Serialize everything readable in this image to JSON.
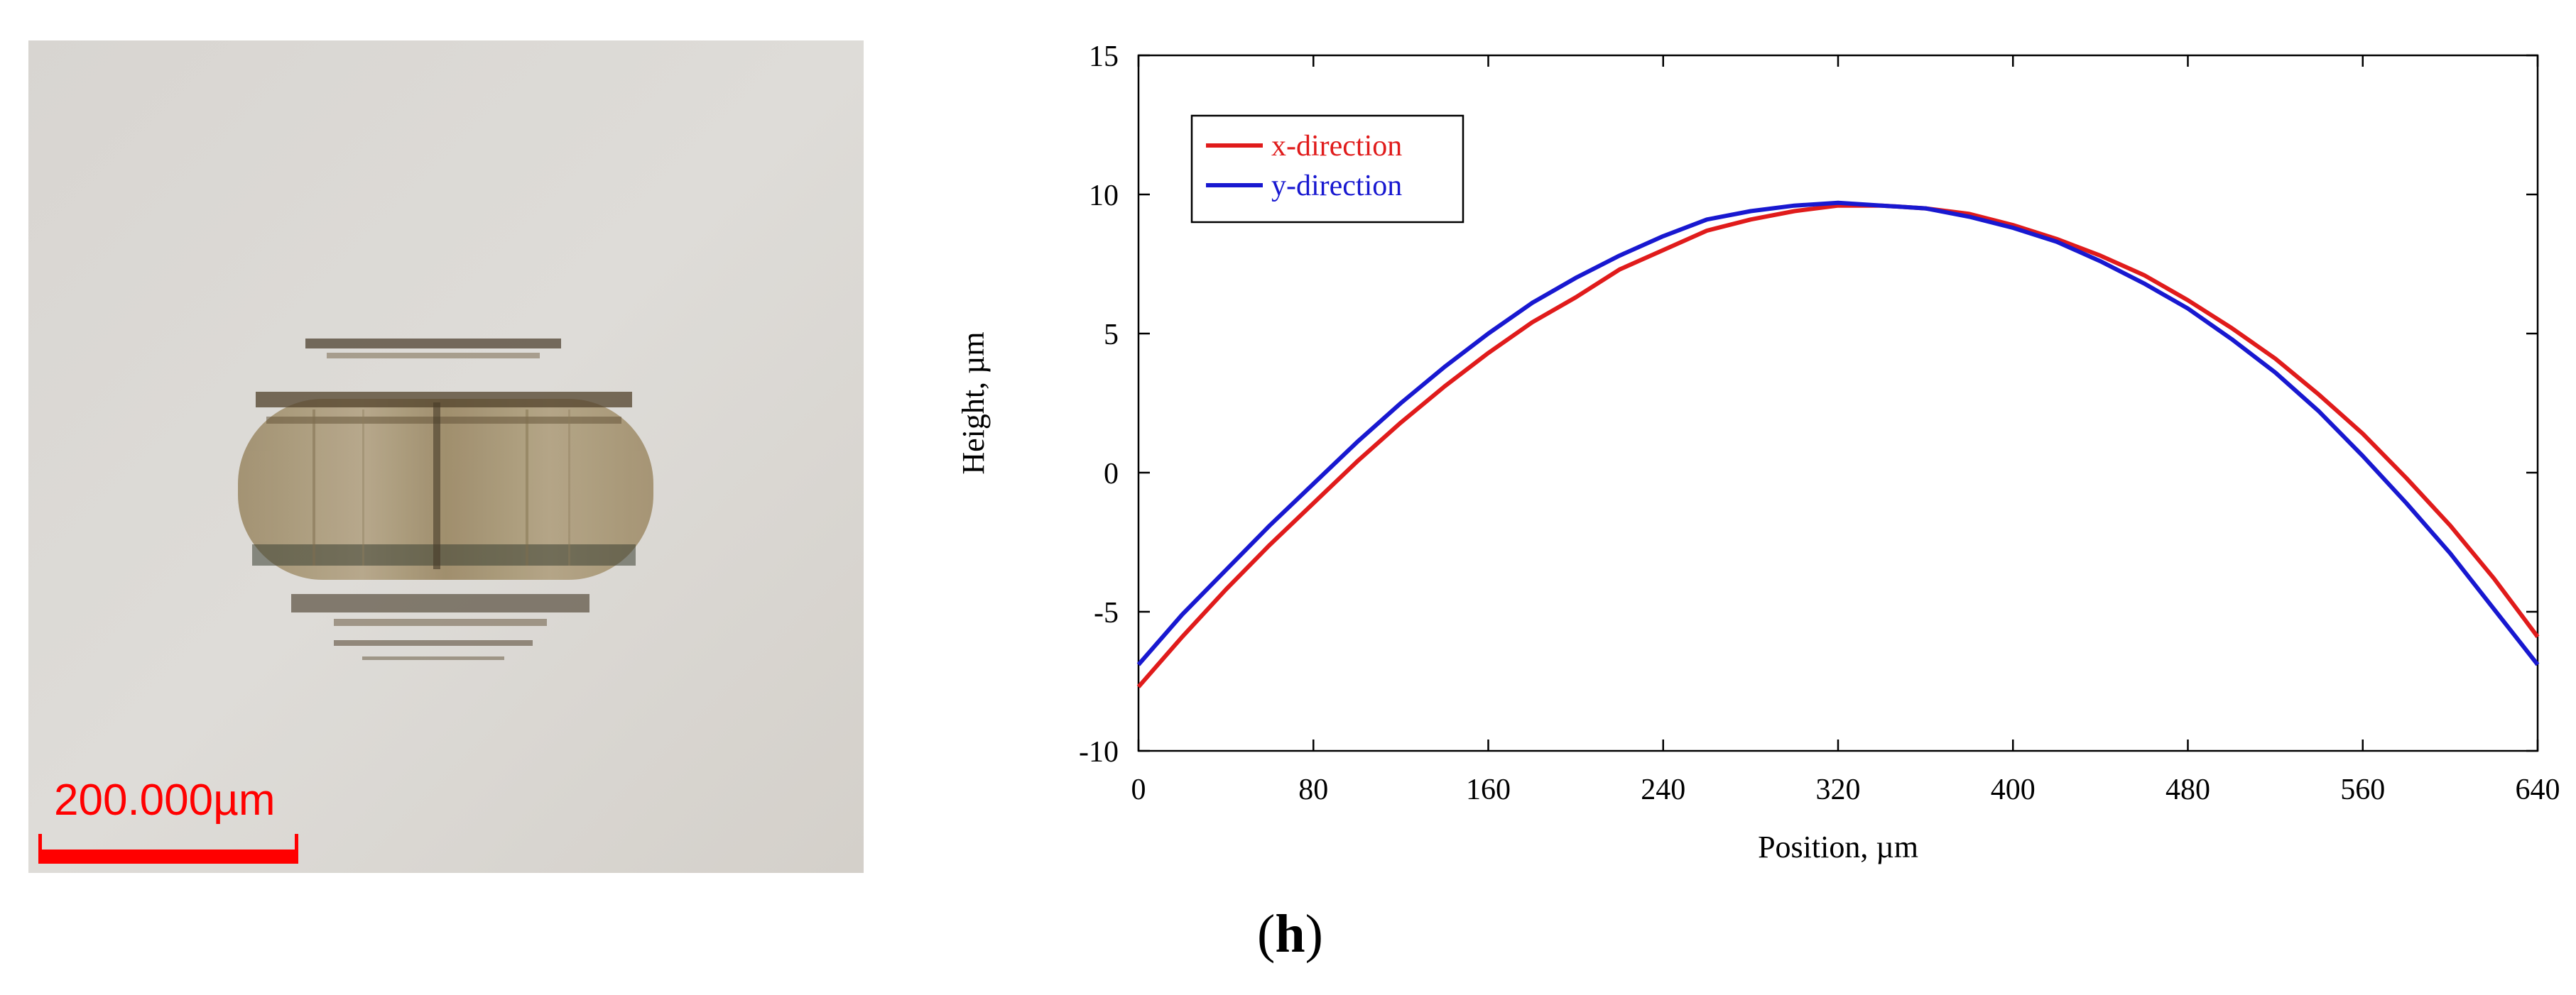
{
  "micrograph": {
    "scale_bar_label": "200.000µm",
    "scale_color": "#ff0000"
  },
  "chart_data": {
    "type": "line",
    "title": "",
    "xlabel": "Position, µm",
    "ylabel": "Height, µm",
    "xlim": [
      0,
      640
    ],
    "ylim": [
      -10,
      15
    ],
    "xticks": [
      0,
      80,
      160,
      240,
      320,
      400,
      480,
      560,
      640
    ],
    "yticks": [
      -10,
      -5,
      0,
      5,
      10,
      15
    ],
    "grid": false,
    "legend_position": "top-left",
    "series": [
      {
        "name": "x-direction",
        "color": "#e01b1b",
        "x": [
          0,
          20,
          40,
          60,
          80,
          100,
          120,
          140,
          160,
          180,
          200,
          220,
          240,
          260,
          280,
          300,
          320,
          340,
          360,
          380,
          400,
          420,
          440,
          460,
          480,
          500,
          520,
          540,
          560,
          580,
          600,
          620,
          640
        ],
        "y": [
          -7.7,
          -5.9,
          -4.2,
          -2.6,
          -1.1,
          0.4,
          1.8,
          3.1,
          4.3,
          5.4,
          6.3,
          7.3,
          8.0,
          8.7,
          9.1,
          9.4,
          9.6,
          9.6,
          9.5,
          9.3,
          8.9,
          8.4,
          7.8,
          7.1,
          6.2,
          5.2,
          4.1,
          2.8,
          1.4,
          -0.2,
          -1.9,
          -3.8,
          -5.9
        ]
      },
      {
        "name": "y-direction",
        "color": "#1818d0",
        "x": [
          0,
          20,
          40,
          60,
          80,
          100,
          120,
          140,
          160,
          180,
          200,
          220,
          240,
          260,
          280,
          300,
          320,
          340,
          360,
          380,
          400,
          420,
          440,
          460,
          480,
          500,
          520,
          540,
          560,
          580,
          600,
          620,
          640
        ],
        "y": [
          -6.9,
          -5.1,
          -3.5,
          -1.9,
          -0.4,
          1.1,
          2.5,
          3.8,
          5.0,
          6.1,
          7.0,
          7.8,
          8.5,
          9.1,
          9.4,
          9.6,
          9.7,
          9.6,
          9.5,
          9.2,
          8.8,
          8.3,
          7.6,
          6.8,
          5.9,
          4.8,
          3.6,
          2.2,
          0.6,
          -1.1,
          -2.9,
          -4.9,
          -6.9
        ]
      }
    ]
  },
  "figure": {
    "panel_label": "h"
  }
}
